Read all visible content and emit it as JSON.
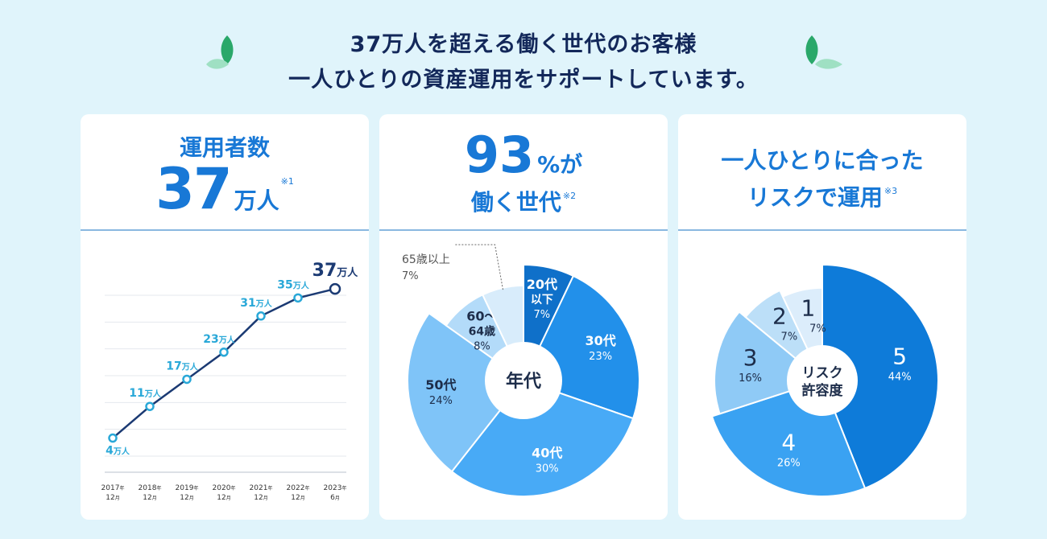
{
  "header": {
    "line1": "37万人を超える働く世代のお客様",
    "line2": "一人ひとりの資産運用をサポートしています。"
  },
  "colors": {
    "background": "#e0f4fb",
    "title_navy": "#13285a",
    "accent_blue": "#1878d6",
    "line_navy": "#1b3a73",
    "label_cyan": "#29a8d8",
    "leaf_green": "#2aa86a",
    "leaf_light": "#9fe0c3"
  },
  "card_users": {
    "title": "運用者数",
    "big_number": "37",
    "unit": "万人",
    "note": "※1"
  },
  "card_age": {
    "big_number": "93",
    "suffix": "%が",
    "line2": "働く世代",
    "note": "※2"
  },
  "card_risk": {
    "line1": "一人ひとりに合った",
    "line2": "リスクで運用",
    "note": "※3"
  },
  "chart_data": [
    {
      "type": "line",
      "title": "運用者数",
      "unit": "万人",
      "categories": [
        "2017年12月",
        "2018年12月",
        "2019年12月",
        "2020年12月",
        "2021年12月",
        "2022年12月",
        "2023年6月"
      ],
      "tick_year": [
        "2017",
        "2018",
        "2019",
        "2020",
        "2021",
        "2022",
        "2023"
      ],
      "tick_month": [
        "12",
        "12",
        "12",
        "12",
        "12",
        "12",
        "6"
      ],
      "year_suffix": "年",
      "month_suffix": "月",
      "values": [
        4,
        11,
        17,
        23,
        31,
        35,
        37
      ],
      "ylim": [
        0,
        42
      ],
      "grid": true
    },
    {
      "type": "pie",
      "title": "年代",
      "center_label": "年代",
      "slices": [
        {
          "label": "20代以下",
          "label_lines": [
            "20代",
            "以下"
          ],
          "value": 7,
          "pct": "7%",
          "color": "#0f70c9"
        },
        {
          "label": "30代",
          "label_lines": [
            "30代"
          ],
          "value": 23,
          "pct": "23%",
          "color": "#2290ea"
        },
        {
          "label": "40代",
          "label_lines": [
            "40代"
          ],
          "value": 30,
          "pct": "30%",
          "color": "#48aaf6"
        },
        {
          "label": "50代",
          "label_lines": [
            "50代"
          ],
          "value": 24,
          "pct": "24%",
          "color": "#7fc4f8"
        },
        {
          "label": "60〜64歳",
          "label_lines": [
            "60〜",
            "64歳"
          ],
          "value": 8,
          "pct": "8%",
          "color": "#b3dbf9"
        },
        {
          "label": "65歳以上",
          "label_lines": [
            "65歳以上"
          ],
          "value": 7,
          "pct": "7%",
          "color": "#d8ecfb"
        }
      ]
    },
    {
      "type": "pie",
      "title": "リスク許容度",
      "center_label_lines": [
        "リスク",
        "許容度"
      ],
      "slices": [
        {
          "label": "5",
          "value": 44,
          "pct": "44%",
          "color": "#0e7bd9"
        },
        {
          "label": "4",
          "value": 26,
          "pct": "26%",
          "color": "#3aa2f2"
        },
        {
          "label": "3",
          "value": 16,
          "pct": "16%",
          "color": "#8fcaf6"
        },
        {
          "label": "2",
          "value": 7,
          "pct": "7%",
          "color": "#bcdff8"
        },
        {
          "label": "1",
          "value": 7,
          "pct": "7%",
          "color": "#dcedfb"
        }
      ]
    }
  ]
}
